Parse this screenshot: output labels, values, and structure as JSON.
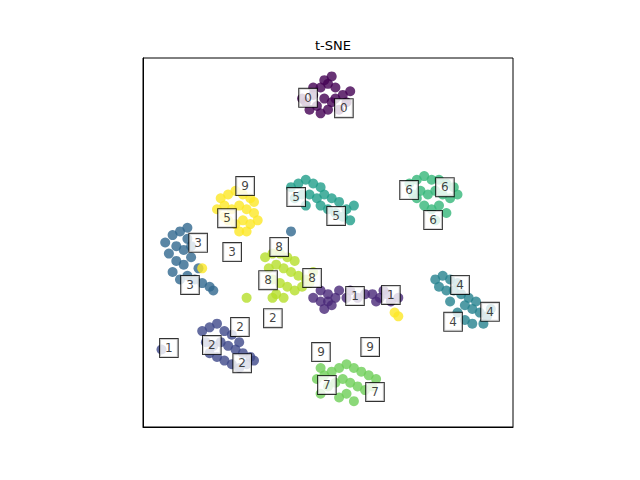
{
  "chart_data": {
    "type": "scatter",
    "title": "t-SNE",
    "marker": "circle",
    "tick_labels": false,
    "grid": false,
    "xlim": [
      0,
      100
    ],
    "ylim": [
      0,
      100
    ],
    "series": [
      {
        "name": "0",
        "color": "#440154",
        "points": [
          [
            44,
            88
          ],
          [
            46,
            90
          ],
          [
            48,
            92
          ],
          [
            50,
            93
          ],
          [
            52,
            92
          ],
          [
            54,
            90
          ],
          [
            55,
            88
          ],
          [
            47,
            87
          ],
          [
            49,
            89
          ],
          [
            51,
            88
          ],
          [
            53,
            86
          ],
          [
            45,
            86
          ],
          [
            48,
            85
          ],
          [
            50,
            86
          ],
          [
            52,
            89
          ],
          [
            46,
            92
          ],
          [
            49,
            94
          ],
          [
            51,
            95
          ],
          [
            43,
            89
          ],
          [
            56,
            91
          ]
        ]
      },
      {
        "name": "1",
        "color": "#482878",
        "points": [
          [
            46,
            35
          ],
          [
            48,
            37
          ],
          [
            50,
            36
          ],
          [
            50,
            34
          ],
          [
            52,
            35
          ],
          [
            53,
            37
          ],
          [
            51,
            33
          ],
          [
            48,
            34
          ],
          [
            55,
            35
          ],
          [
            58,
            35
          ],
          [
            60,
            36
          ],
          [
            62,
            36
          ],
          [
            64,
            35
          ],
          [
            66,
            36
          ],
          [
            67,
            34
          ],
          [
            65,
            37
          ],
          [
            63,
            34
          ],
          [
            69,
            35
          ],
          [
            56,
            37
          ],
          [
            49,
            32
          ]
        ]
      },
      {
        "name": "2",
        "color": "#3e4989",
        "points": [
          [
            16,
            26
          ],
          [
            18,
            27
          ],
          [
            20,
            28
          ],
          [
            22,
            26
          ],
          [
            24,
            25
          ],
          [
            17,
            23
          ],
          [
            19,
            22
          ],
          [
            21,
            23
          ],
          [
            23,
            22
          ],
          [
            25,
            21
          ],
          [
            27,
            20
          ],
          [
            29,
            19
          ],
          [
            20,
            19
          ],
          [
            22,
            18
          ],
          [
            24,
            17
          ],
          [
            26,
            16
          ],
          [
            28,
            17
          ],
          [
            30,
            18
          ],
          [
            18,
            20
          ],
          [
            26,
            23
          ],
          [
            5,
            21
          ]
        ]
      },
      {
        "name": "3",
        "color": "#31688e",
        "points": [
          [
            8,
            52
          ],
          [
            10,
            53
          ],
          [
            12,
            51
          ],
          [
            9,
            49
          ],
          [
            11,
            48
          ],
          [
            13,
            49
          ],
          [
            7,
            47
          ],
          [
            9,
            45
          ],
          [
            11,
            44
          ],
          [
            13,
            46
          ],
          [
            8,
            42
          ],
          [
            10,
            40
          ],
          [
            12,
            41
          ],
          [
            14,
            40
          ],
          [
            16,
            39
          ],
          [
            18,
            38
          ],
          [
            19,
            37
          ],
          [
            15,
            43
          ],
          [
            6,
            50
          ],
          [
            12,
            54
          ],
          [
            40,
            53
          ]
        ]
      },
      {
        "name": "4",
        "color": "#26828e",
        "points": [
          [
            79,
            40
          ],
          [
            81,
            41
          ],
          [
            83,
            40
          ],
          [
            85,
            39
          ],
          [
            80,
            38
          ],
          [
            82,
            37
          ],
          [
            84,
            37
          ],
          [
            86,
            36
          ],
          [
            88,
            35
          ],
          [
            90,
            34
          ],
          [
            87,
            33
          ],
          [
            89,
            32
          ],
          [
            91,
            31
          ],
          [
            93,
            30
          ],
          [
            85,
            31
          ],
          [
            87,
            29
          ],
          [
            89,
            28
          ],
          [
            92,
            28
          ],
          [
            94,
            32
          ],
          [
            83,
            34
          ]
        ]
      },
      {
        "name": "5",
        "color": "#1f9e89",
        "points": [
          [
            40,
            65
          ],
          [
            42,
            66
          ],
          [
            44,
            67
          ],
          [
            46,
            66
          ],
          [
            48,
            65
          ],
          [
            41,
            62
          ],
          [
            43,
            63
          ],
          [
            45,
            63
          ],
          [
            47,
            62
          ],
          [
            49,
            63
          ],
          [
            51,
            62
          ],
          [
            53,
            61
          ],
          [
            50,
            59
          ],
          [
            52,
            58
          ],
          [
            54,
            57
          ],
          [
            56,
            56
          ],
          [
            55,
            59
          ],
          [
            57,
            60
          ],
          [
            48,
            60
          ],
          [
            44,
            60
          ]
        ]
      },
      {
        "name": "6",
        "color": "#35b779",
        "points": [
          [
            72,
            66
          ],
          [
            74,
            67
          ],
          [
            76,
            68
          ],
          [
            78,
            67
          ],
          [
            80,
            67
          ],
          [
            82,
            66
          ],
          [
            84,
            65
          ],
          [
            73,
            63
          ],
          [
            75,
            64
          ],
          [
            77,
            63
          ],
          [
            79,
            64
          ],
          [
            81,
            63
          ],
          [
            83,
            62
          ],
          [
            76,
            60
          ],
          [
            78,
            59
          ],
          [
            80,
            60
          ],
          [
            82,
            58
          ],
          [
            79,
            56
          ],
          [
            74,
            62
          ],
          [
            85,
            63
          ]
        ]
      },
      {
        "name": "7",
        "color": "#6ece58",
        "points": [
          [
            47,
            13
          ],
          [
            49,
            14
          ],
          [
            51,
            15
          ],
          [
            53,
            16
          ],
          [
            55,
            17
          ],
          [
            57,
            16
          ],
          [
            59,
            15
          ],
          [
            61,
            14
          ],
          [
            50,
            11
          ],
          [
            52,
            12
          ],
          [
            54,
            13
          ],
          [
            56,
            12
          ],
          [
            58,
            11
          ],
          [
            60,
            10
          ],
          [
            62,
            11
          ],
          [
            53,
            8
          ],
          [
            55,
            9
          ],
          [
            57,
            7
          ],
          [
            48,
            9
          ],
          [
            63,
            13
          ],
          [
            48,
            16
          ]
        ]
      },
      {
        "name": "8",
        "color": "#b5de2b",
        "points": [
          [
            33,
            46
          ],
          [
            35,
            47
          ],
          [
            37,
            47
          ],
          [
            39,
            46
          ],
          [
            41,
            45
          ],
          [
            34,
            43
          ],
          [
            36,
            44
          ],
          [
            38,
            43
          ],
          [
            40,
            42
          ],
          [
            42,
            41
          ],
          [
            44,
            40
          ],
          [
            35,
            40
          ],
          [
            37,
            39
          ],
          [
            39,
            38
          ],
          [
            41,
            37
          ],
          [
            43,
            38
          ],
          [
            45,
            39
          ],
          [
            36,
            36
          ],
          [
            38,
            35
          ],
          [
            46,
            42
          ],
          [
            28,
            35
          ],
          [
            35,
            35
          ]
        ]
      },
      {
        "name": "9",
        "color": "#fde725",
        "points": [
          [
            21,
            62
          ],
          [
            23,
            63
          ],
          [
            25,
            64
          ],
          [
            27,
            63
          ],
          [
            29,
            62
          ],
          [
            20,
            59
          ],
          [
            22,
            60
          ],
          [
            24,
            59
          ],
          [
            26,
            60
          ],
          [
            28,
            59
          ],
          [
            30,
            58
          ],
          [
            23,
            56
          ],
          [
            25,
            55
          ],
          [
            27,
            56
          ],
          [
            29,
            55
          ],
          [
            31,
            56
          ],
          [
            26,
            53
          ],
          [
            28,
            53
          ],
          [
            22,
            57
          ],
          [
            30,
            61
          ],
          [
            68,
            31
          ],
          [
            69,
            30
          ],
          [
            16,
            43
          ]
        ]
      }
    ],
    "annotations": [
      {
        "text": "0",
        "x": 44.6,
        "y": 89.2
      },
      {
        "text": "0",
        "x": 54.3,
        "y": 86.4
      },
      {
        "text": "6",
        "x": 71.9,
        "y": 64.2
      },
      {
        "text": "6",
        "x": 81.6,
        "y": 65.0
      },
      {
        "text": "6",
        "x": 78.4,
        "y": 56.1
      },
      {
        "text": "5",
        "x": 41.4,
        "y": 62.3
      },
      {
        "text": "5",
        "x": 52.2,
        "y": 57.2
      },
      {
        "text": "5",
        "x": 22.7,
        "y": 56.6
      },
      {
        "text": "9",
        "x": 27.6,
        "y": 65.3
      },
      {
        "text": "3",
        "x": 14.9,
        "y": 49.9
      },
      {
        "text": "3",
        "x": 24.1,
        "y": 47.4
      },
      {
        "text": "3",
        "x": 12.7,
        "y": 38.5
      },
      {
        "text": "8",
        "x": 36.8,
        "y": 48.8
      },
      {
        "text": "8",
        "x": 33.8,
        "y": 39.8
      },
      {
        "text": "8",
        "x": 45.7,
        "y": 40.4
      },
      {
        "text": "2",
        "x": 35.1,
        "y": 29.5
      },
      {
        "text": "1",
        "x": 57.3,
        "y": 35.5
      },
      {
        "text": "1",
        "x": 67.0,
        "y": 35.8
      },
      {
        "text": "4",
        "x": 85.7,
        "y": 38.5
      },
      {
        "text": "4",
        "x": 83.8,
        "y": 28.5
      },
      {
        "text": "4",
        "x": 93.8,
        "y": 31.2
      },
      {
        "text": "2",
        "x": 26.2,
        "y": 27.1
      },
      {
        "text": "2",
        "x": 18.6,
        "y": 22.2
      },
      {
        "text": "2",
        "x": 26.8,
        "y": 17.3
      },
      {
        "text": "1",
        "x": 7.0,
        "y": 21.4
      },
      {
        "text": "9",
        "x": 48.1,
        "y": 20.3
      },
      {
        "text": "9",
        "x": 61.4,
        "y": 21.7
      },
      {
        "text": "7",
        "x": 49.7,
        "y": 11.4
      },
      {
        "text": "7",
        "x": 62.7,
        "y": 9.5
      }
    ]
  }
}
